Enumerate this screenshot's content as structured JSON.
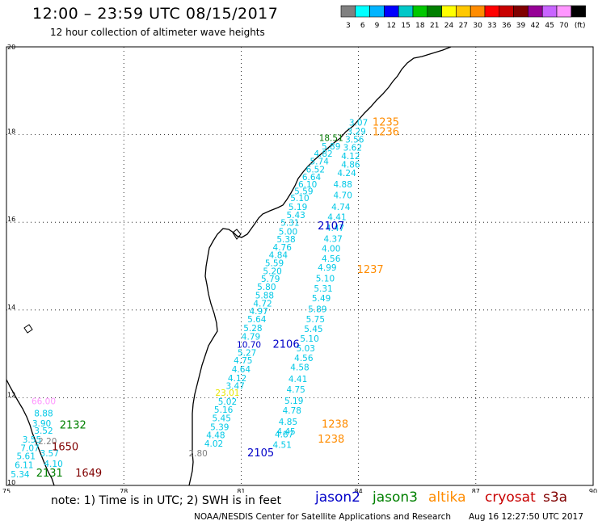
{
  "header": {
    "title": "12:00 – 23:59 UTC 08/15/2017",
    "subtitle": "12 hour collection of altimeter wave heights"
  },
  "colorbar": {
    "colors": [
      "#808080",
      "#00ffff",
      "#00b4ff",
      "#0000ff",
      "#00c8c8",
      "#00c800",
      "#008000",
      "#ffff00",
      "#ffc800",
      "#ff8c00",
      "#ff0000",
      "#c80000",
      "#800000",
      "#960096",
      "#c864ff",
      "#ff96ff",
      "#000000"
    ],
    "labels": [
      "3",
      "6",
      "9",
      "12",
      "15",
      "18",
      "21",
      "24",
      "27",
      "30",
      "33",
      "36",
      "39",
      "42",
      "45",
      "70",
      "(ft)"
    ]
  },
  "map": {
    "lon_ticks": [
      "75",
      "78",
      "81",
      "84",
      "87",
      "90"
    ],
    "lat_ticks": [
      "20",
      "18",
      "16",
      "14",
      "12",
      "10"
    ],
    "obs": [
      {
        "t": "3.07",
        "lon": 84.0,
        "lat": 18.2,
        "c": "#00c8e6"
      },
      {
        "t": "3.29",
        "lon": 83.95,
        "lat": 18.0,
        "c": "#00c8e6"
      },
      {
        "t": "18.51",
        "lon": 83.3,
        "lat": 17.85,
        "c": "#007800"
      },
      {
        "t": "3.56",
        "lon": 83.9,
        "lat": 17.82,
        "c": "#00c8e6"
      },
      {
        "t": "5.89",
        "lon": 83.3,
        "lat": 17.66,
        "c": "#00c8e6"
      },
      {
        "t": "3.62",
        "lon": 83.85,
        "lat": 17.63,
        "c": "#00c8e6"
      },
      {
        "t": "4.82",
        "lon": 83.1,
        "lat": 17.5,
        "c": "#00c8e6"
      },
      {
        "t": "4.12",
        "lon": 83.8,
        "lat": 17.44,
        "c": "#00c8e6"
      },
      {
        "t": "5.74",
        "lon": 83.0,
        "lat": 17.32,
        "c": "#00c8e6"
      },
      {
        "t": "4.86",
        "lon": 83.8,
        "lat": 17.25,
        "c": "#00c8e6"
      },
      {
        "t": "6.52",
        "lon": 82.9,
        "lat": 17.14,
        "c": "#00c8e6"
      },
      {
        "t": "4.24",
        "lon": 83.7,
        "lat": 17.05,
        "c": "#00c8e6"
      },
      {
        "t": "6.64",
        "lon": 82.8,
        "lat": 16.96,
        "c": "#00c8e6"
      },
      {
        "t": "6.10",
        "lon": 82.7,
        "lat": 16.8,
        "c": "#00c8e6"
      },
      {
        "t": "4.88",
        "lon": 83.6,
        "lat": 16.8,
        "c": "#00c8e6"
      },
      {
        "t": "5.59",
        "lon": 82.6,
        "lat": 16.64,
        "c": "#00c8e6"
      },
      {
        "t": "4.70",
        "lon": 83.6,
        "lat": 16.55,
        "c": "#00c8e6"
      },
      {
        "t": "5.10",
        "lon": 82.5,
        "lat": 16.48,
        "c": "#00c8e6"
      },
      {
        "t": "5.19",
        "lon": 82.45,
        "lat": 16.28,
        "c": "#00c8e6"
      },
      {
        "t": "4.74",
        "lon": 83.55,
        "lat": 16.28,
        "c": "#00c8e6"
      },
      {
        "t": "5.43",
        "lon": 82.4,
        "lat": 16.1,
        "c": "#00c8e6"
      },
      {
        "t": "4.41",
        "lon": 83.45,
        "lat": 16.05,
        "c": "#00c8e6"
      },
      {
        "t": "5.31",
        "lon": 82.25,
        "lat": 15.92,
        "c": "#00c8e6"
      },
      {
        "t": "4.47",
        "lon": 83.4,
        "lat": 15.8,
        "c": "#00c8e6"
      },
      {
        "t": "5.00",
        "lon": 82.2,
        "lat": 15.72,
        "c": "#00c8e6"
      },
      {
        "t": "4.37",
        "lon": 83.35,
        "lat": 15.55,
        "c": "#00c8e6"
      },
      {
        "t": "5.38",
        "lon": 82.15,
        "lat": 15.54,
        "c": "#00c8e6"
      },
      {
        "t": "4.76",
        "lon": 82.05,
        "lat": 15.36,
        "c": "#00c8e6"
      },
      {
        "t": "4.00",
        "lon": 83.3,
        "lat": 15.33,
        "c": "#00c8e6"
      },
      {
        "t": "4.84",
        "lon": 81.95,
        "lat": 15.18,
        "c": "#00c8e6"
      },
      {
        "t": "4.56",
        "lon": 83.3,
        "lat": 15.1,
        "c": "#00c8e6"
      },
      {
        "t": "5.59",
        "lon": 81.85,
        "lat": 15.0,
        "c": "#00c8e6"
      },
      {
        "t": "4.99",
        "lon": 83.2,
        "lat": 14.9,
        "c": "#00c8e6"
      },
      {
        "t": "5.20",
        "lon": 81.8,
        "lat": 14.82,
        "c": "#00c8e6"
      },
      {
        "t": "5.10",
        "lon": 83.15,
        "lat": 14.65,
        "c": "#00c8e6"
      },
      {
        "t": "5.79",
        "lon": 81.75,
        "lat": 14.64,
        "c": "#00c8e6"
      },
      {
        "t": "5.31",
        "lon": 83.1,
        "lat": 14.42,
        "c": "#00c8e6"
      },
      {
        "t": "5.80",
        "lon": 81.65,
        "lat": 14.46,
        "c": "#00c8e6"
      },
      {
        "t": "5.88",
        "lon": 81.6,
        "lat": 14.26,
        "c": "#00c8e6"
      },
      {
        "t": "5.49",
        "lon": 83.05,
        "lat": 14.2,
        "c": "#00c8e6"
      },
      {
        "t": "4.72",
        "lon": 81.55,
        "lat": 14.08,
        "c": "#00c8e6"
      },
      {
        "t": "5.89",
        "lon": 82.95,
        "lat": 13.95,
        "c": "#00c8e6"
      },
      {
        "t": "4.97",
        "lon": 81.45,
        "lat": 13.9,
        "c": "#00c8e6"
      },
      {
        "t": "5.75",
        "lon": 82.9,
        "lat": 13.72,
        "c": "#00c8e6"
      },
      {
        "t": "5.64",
        "lon": 81.4,
        "lat": 13.72,
        "c": "#00c8e6"
      },
      {
        "t": "5.28",
        "lon": 81.3,
        "lat": 13.52,
        "c": "#00c8e6"
      },
      {
        "t": "5.45",
        "lon": 82.85,
        "lat": 13.5,
        "c": "#00c8e6"
      },
      {
        "t": "4.79",
        "lon": 81.25,
        "lat": 13.32,
        "c": "#00c8e6"
      },
      {
        "t": "5.10",
        "lon": 82.75,
        "lat": 13.28,
        "c": "#00c8e6"
      },
      {
        "t": "10.70",
        "lon": 81.2,
        "lat": 13.14,
        "c": "#0000c8"
      },
      {
        "t": "5.03",
        "lon": 82.65,
        "lat": 13.06,
        "c": "#00c8e6"
      },
      {
        "t": "5.27",
        "lon": 81.15,
        "lat": 12.96,
        "c": "#00c8e6"
      },
      {
        "t": "4.56",
        "lon": 82.6,
        "lat": 12.84,
        "c": "#00c8e6"
      },
      {
        "t": "4.75",
        "lon": 81.05,
        "lat": 12.78,
        "c": "#00c8e6"
      },
      {
        "t": "4.58",
        "lon": 82.5,
        "lat": 12.62,
        "c": "#00c8e6"
      },
      {
        "t": "4.64",
        "lon": 81.0,
        "lat": 12.58,
        "c": "#00c8e6"
      },
      {
        "t": "4.12",
        "lon": 80.9,
        "lat": 12.38,
        "c": "#00c8e6"
      },
      {
        "t": "4.41",
        "lon": 82.45,
        "lat": 12.36,
        "c": "#00c8e6"
      },
      {
        "t": "3.47",
        "lon": 80.85,
        "lat": 12.2,
        "c": "#00c8e6"
      },
      {
        "t": "4.75",
        "lon": 82.4,
        "lat": 12.12,
        "c": "#00c8e6"
      },
      {
        "t": "23.01",
        "lon": 80.65,
        "lat": 12.04,
        "c": "#e6e600"
      },
      {
        "t": "5.02",
        "lon": 80.65,
        "lat": 11.84,
        "c": "#00c8e6"
      },
      {
        "t": "5.19",
        "lon": 82.35,
        "lat": 11.86,
        "c": "#00c8e6"
      },
      {
        "t": "5.16",
        "lon": 80.55,
        "lat": 11.66,
        "c": "#00c8e6"
      },
      {
        "t": "4.78",
        "lon": 82.3,
        "lat": 11.64,
        "c": "#00c8e6"
      },
      {
        "t": "5.45",
        "lon": 80.5,
        "lat": 11.46,
        "c": "#00c8e6"
      },
      {
        "t": "4.85",
        "lon": 82.2,
        "lat": 11.38,
        "c": "#00c8e6"
      },
      {
        "t": "5.39",
        "lon": 80.45,
        "lat": 11.26,
        "c": "#00c8e6"
      },
      {
        "t": "4.45",
        "lon": 82.15,
        "lat": 11.16,
        "c": "#00c8e6"
      },
      {
        "t": "4.87",
        "lon": 82.1,
        "lat": 11.1,
        "c": "#00c8e6"
      },
      {
        "t": "4.48",
        "lon": 80.35,
        "lat": 11.08,
        "c": "#00c8e6"
      },
      {
        "t": "4.02",
        "lon": 80.3,
        "lat": 10.88,
        "c": "#00c8e6"
      },
      {
        "t": "4.51",
        "lon": 82.05,
        "lat": 10.86,
        "c": "#00c8e6"
      },
      {
        "t": "2.80",
        "lon": 79.9,
        "lat": 10.66,
        "c": "#808080"
      },
      {
        "t": "66.00",
        "lon": 75.95,
        "lat": 11.85,
        "c": "#ff96ff"
      },
      {
        "t": "8.88",
        "lon": 75.95,
        "lat": 11.57,
        "c": "#00c8e6"
      },
      {
        "t": "3.90",
        "lon": 75.9,
        "lat": 11.34,
        "c": "#00c8e6"
      },
      {
        "t": "3.52",
        "lon": 75.95,
        "lat": 11.18,
        "c": "#00c8e6"
      },
      {
        "t": "3.55",
        "lon": 75.65,
        "lat": 10.98,
        "c": "#00c8e6"
      },
      {
        "t": "2.20",
        "lon": 76.05,
        "lat": 10.94,
        "c": "#808080"
      },
      {
        "t": "7.07",
        "lon": 75.6,
        "lat": 10.78,
        "c": "#00c8e6"
      },
      {
        "t": "3.57",
        "lon": 76.1,
        "lat": 10.66,
        "c": "#00c8e6"
      },
      {
        "t": "5.61",
        "lon": 75.5,
        "lat": 10.6,
        "c": "#00c8e6"
      },
      {
        "t": "6.11",
        "lon": 75.45,
        "lat": 10.4,
        "c": "#00c8e6"
      },
      {
        "t": "4.10",
        "lon": 76.2,
        "lat": 10.42,
        "c": "#00c8e6"
      },
      {
        "t": "5.34",
        "lon": 75.35,
        "lat": 10.18,
        "c": "#00c8e6"
      }
    ],
    "times": [
      {
        "t": "1235",
        "lon": 84.7,
        "lat": 18.2,
        "c": "#ff8c00"
      },
      {
        "t": "1236",
        "lon": 84.7,
        "lat": 17.98,
        "c": "#ff8c00"
      },
      {
        "t": "2107",
        "lon": 83.3,
        "lat": 15.84,
        "c": "#0000c8"
      },
      {
        "t": "1237",
        "lon": 84.3,
        "lat": 14.84,
        "c": "#ff8c00"
      },
      {
        "t": "2106",
        "lon": 82.15,
        "lat": 13.14,
        "c": "#0000c8"
      },
      {
        "t": "1238",
        "lon": 83.4,
        "lat": 11.32,
        "c": "#ff8c00"
      },
      {
        "t": "1238",
        "lon": 83.3,
        "lat": 10.98,
        "c": "#ff8c00"
      },
      {
        "t": "2105",
        "lon": 81.5,
        "lat": 10.66,
        "c": "#0000c8"
      },
      {
        "t": "2132",
        "lon": 76.7,
        "lat": 11.3,
        "c": "#008000"
      },
      {
        "t": "1650",
        "lon": 76.5,
        "lat": 10.8,
        "c": "#800000"
      },
      {
        "t": "2131",
        "lon": 76.1,
        "lat": 10.2,
        "c": "#008000"
      },
      {
        "t": "1649",
        "lon": 77.1,
        "lat": 10.2,
        "c": "#800000"
      }
    ]
  },
  "legend": {
    "note": "note: 1) Time is in UTC; 2) SWH is in feet",
    "satellites": [
      {
        "name": "jason2",
        "color": "#0000c8"
      },
      {
        "name": "jason3",
        "color": "#008000"
      },
      {
        "name": "altika",
        "color": "#ff8c00"
      },
      {
        "name": "cryosat",
        "color": "#c80000"
      },
      {
        "name": "s3a",
        "color": "#800000"
      }
    ]
  },
  "footer": {
    "center": "NOAA/NESDIS Center for Satellite Applications and Research",
    "right": "Aug 16 12:27:50 UTC 2017"
  }
}
